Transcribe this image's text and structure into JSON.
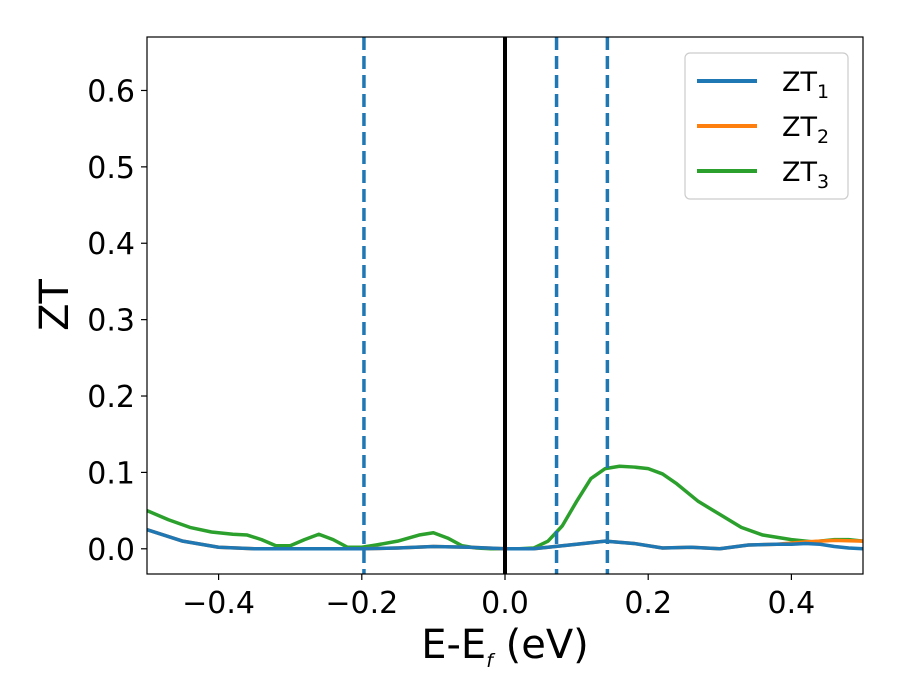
{
  "chart_data": {
    "type": "line",
    "title": "",
    "xlabel": {
      "main": "E-E",
      "sub": "f",
      "suffix": " (eV)"
    },
    "ylabel": "ZT",
    "xlim": [
      -0.5,
      0.5
    ],
    "ylim": [
      -0.033,
      0.67
    ],
    "xticks": [
      -0.4,
      -0.2,
      0.0,
      0.2,
      0.4
    ],
    "xtick_labels": [
      "−0.4",
      "−0.2",
      "0.0",
      "0.2",
      "0.4"
    ],
    "yticks": [
      0.0,
      0.1,
      0.2,
      0.3,
      0.4,
      0.5,
      0.6
    ],
    "ytick_labels": [
      "0.0",
      "0.1",
      "0.2",
      "0.3",
      "0.4",
      "0.5",
      "0.6"
    ],
    "grid": false,
    "legend_position": "top-right",
    "reference_lines": [
      {
        "x": 0.0,
        "style": "solid",
        "color": "#000000"
      },
      {
        "x": -0.197,
        "style": "dashed",
        "color": "#1f77b4"
      },
      {
        "x": 0.072,
        "style": "dashed",
        "color": "#1f77b4"
      },
      {
        "x": 0.143,
        "style": "dashed",
        "color": "#1f77b4"
      }
    ],
    "series": [
      {
        "name": "ZT",
        "name_sub": "1",
        "color": "#1f77b4",
        "x": [
          -0.5,
          -0.45,
          -0.4,
          -0.35,
          -0.3,
          -0.25,
          -0.2,
          -0.15,
          -0.1,
          -0.05,
          0.0,
          0.04,
          0.07,
          0.1,
          0.14,
          0.18,
          0.22,
          0.26,
          0.3,
          0.34,
          0.38,
          0.4,
          0.42,
          0.44,
          0.46,
          0.48,
          0.5
        ],
        "y": [
          0.025,
          0.01,
          0.002,
          0.0,
          0.0,
          0.0,
          0.0,
          0.001,
          0.003,
          0.002,
          0.0,
          0.0,
          0.003,
          0.006,
          0.01,
          0.007,
          0.001,
          0.002,
          0.0,
          0.005,
          0.006,
          0.006,
          0.007,
          0.006,
          0.003,
          0.001,
          0.0
        ]
      },
      {
        "name": "ZT",
        "name_sub": "2",
        "color": "#ff7f0e",
        "x": [
          -0.5,
          -0.45,
          -0.4,
          -0.35,
          -0.3,
          -0.25,
          -0.2,
          -0.15,
          -0.1,
          -0.05,
          0.0,
          0.04,
          0.07,
          0.1,
          0.14,
          0.18,
          0.22,
          0.26,
          0.3,
          0.34,
          0.38,
          0.42,
          0.46,
          0.5
        ],
        "y": [
          0.025,
          0.01,
          0.002,
          0.0,
          0.0,
          0.0,
          0.0,
          0.001,
          0.003,
          0.002,
          0.0,
          0.0,
          0.003,
          0.006,
          0.01,
          0.007,
          0.001,
          0.002,
          0.0,
          0.005,
          0.006,
          0.009,
          0.011,
          0.01
        ]
      },
      {
        "name": "ZT",
        "name_sub": "3",
        "color": "#2ca02c",
        "x": [
          -0.5,
          -0.47,
          -0.44,
          -0.41,
          -0.38,
          -0.36,
          -0.34,
          -0.32,
          -0.3,
          -0.28,
          -0.26,
          -0.24,
          -0.22,
          -0.2,
          -0.18,
          -0.15,
          -0.12,
          -0.1,
          -0.08,
          -0.06,
          -0.04,
          -0.02,
          0.0,
          0.02,
          0.04,
          0.06,
          0.08,
          0.1,
          0.12,
          0.14,
          0.16,
          0.18,
          0.2,
          0.22,
          0.24,
          0.27,
          0.3,
          0.33,
          0.36,
          0.4,
          0.43,
          0.46,
          0.48,
          0.5
        ],
        "y": [
          0.05,
          0.038,
          0.028,
          0.022,
          0.019,
          0.018,
          0.012,
          0.004,
          0.004,
          0.012,
          0.019,
          0.012,
          0.002,
          0.002,
          0.005,
          0.01,
          0.018,
          0.021,
          0.014,
          0.004,
          0.001,
          0.0,
          0.0,
          0.0,
          0.001,
          0.01,
          0.03,
          0.062,
          0.092,
          0.105,
          0.108,
          0.107,
          0.105,
          0.098,
          0.085,
          0.062,
          0.045,
          0.028,
          0.018,
          0.012,
          0.009,
          0.012,
          0.012,
          0.01
        ]
      }
    ]
  }
}
